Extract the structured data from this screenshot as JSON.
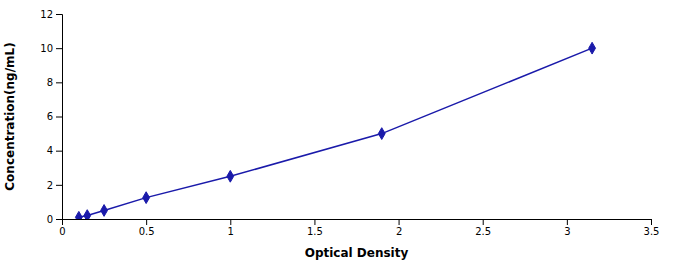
{
  "chart_data": {
    "type": "line",
    "x": [
      0.1,
      0.15,
      0.25,
      0.5,
      1.0,
      1.9,
      3.15
    ],
    "values": [
      0.1,
      0.2,
      0.5,
      1.25,
      2.5,
      5.0,
      10.0
    ],
    "color": "#1a1aaa",
    "marker": "diamond",
    "xlabel": "Optical Density",
    "ylabel": "Concentration(ng/mL)",
    "xlim": [
      0.0,
      3.5
    ],
    "ylim": [
      0,
      12
    ],
    "xticks": [
      0.0,
      0.5,
      1.0,
      1.5,
      2.0,
      2.5,
      3.0,
      3.5
    ],
    "yticks": [
      0,
      2,
      4,
      6,
      8,
      10,
      12
    ],
    "grid": false
  }
}
